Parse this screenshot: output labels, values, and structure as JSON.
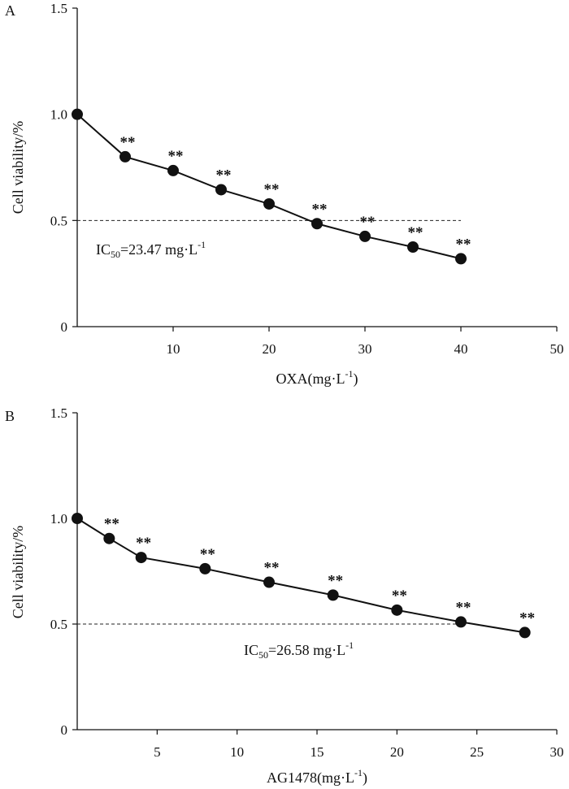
{
  "chart_data": [
    {
      "type": "line",
      "panel_label": "A",
      "x": [
        0,
        5,
        10,
        15,
        20,
        25,
        30,
        35,
        40
      ],
      "values": [
        1.0,
        0.8,
        0.735,
        0.645,
        0.578,
        0.485,
        0.425,
        0.375,
        0.32
      ],
      "significance": [
        "",
        "**",
        "**",
        "**",
        "**",
        "**",
        "**",
        "**",
        "**"
      ],
      "xlabel_main": "OXA(mg·L",
      "xlabel_sup": "-1",
      "xlabel_end": ")",
      "ylabel": "Cell viability/%",
      "xlim": [
        0,
        50
      ],
      "ylim": [
        0,
        1.5
      ],
      "xticks": [
        10,
        20,
        30,
        40,
        50
      ],
      "xtick_labels": [
        "10",
        "20",
        "30",
        "40",
        "50"
      ],
      "yticks": [
        0,
        0.5,
        1.0,
        1.5
      ],
      "ytick_labels": [
        "0",
        "0.5",
        "1.0",
        "1.5"
      ],
      "reference_line": {
        "y": 0.5,
        "x_end": 40,
        "style": "dashed"
      },
      "annotation": {
        "prefix": "IC",
        "sub": "50",
        "value": "=23.47 mg·L",
        "sup": "-1"
      }
    },
    {
      "type": "line",
      "panel_label": "B",
      "x": [
        0,
        2,
        4,
        8,
        12,
        16,
        20,
        24,
        28
      ],
      "values": [
        1.0,
        0.905,
        0.815,
        0.762,
        0.698,
        0.637,
        0.566,
        0.51,
        0.46
      ],
      "significance": [
        "",
        "**",
        "**",
        "**",
        "**",
        "**",
        "**",
        "**",
        "**"
      ],
      "xlabel_main": "AG1478(mg·L",
      "xlabel_sup": "-1",
      "xlabel_end": ")",
      "ylabel": "Cell viability/%",
      "xlim": [
        0,
        30
      ],
      "ylim": [
        0,
        1.5
      ],
      "xticks": [
        5,
        10,
        15,
        20,
        25,
        30
      ],
      "xtick_labels": [
        "5",
        "10",
        "15",
        "20",
        "25",
        "30"
      ],
      "yticks": [
        0,
        0.5,
        1.0,
        1.5
      ],
      "ytick_labels": [
        "0",
        "0.5",
        "1.0",
        "1.5"
      ],
      "reference_line": {
        "y": 0.5,
        "x_end": 24,
        "style": "dashed"
      },
      "annotation": {
        "prefix": "IC",
        "sub": "50",
        "value": "=26.58 mg·L",
        "sup": "-1"
      }
    }
  ]
}
